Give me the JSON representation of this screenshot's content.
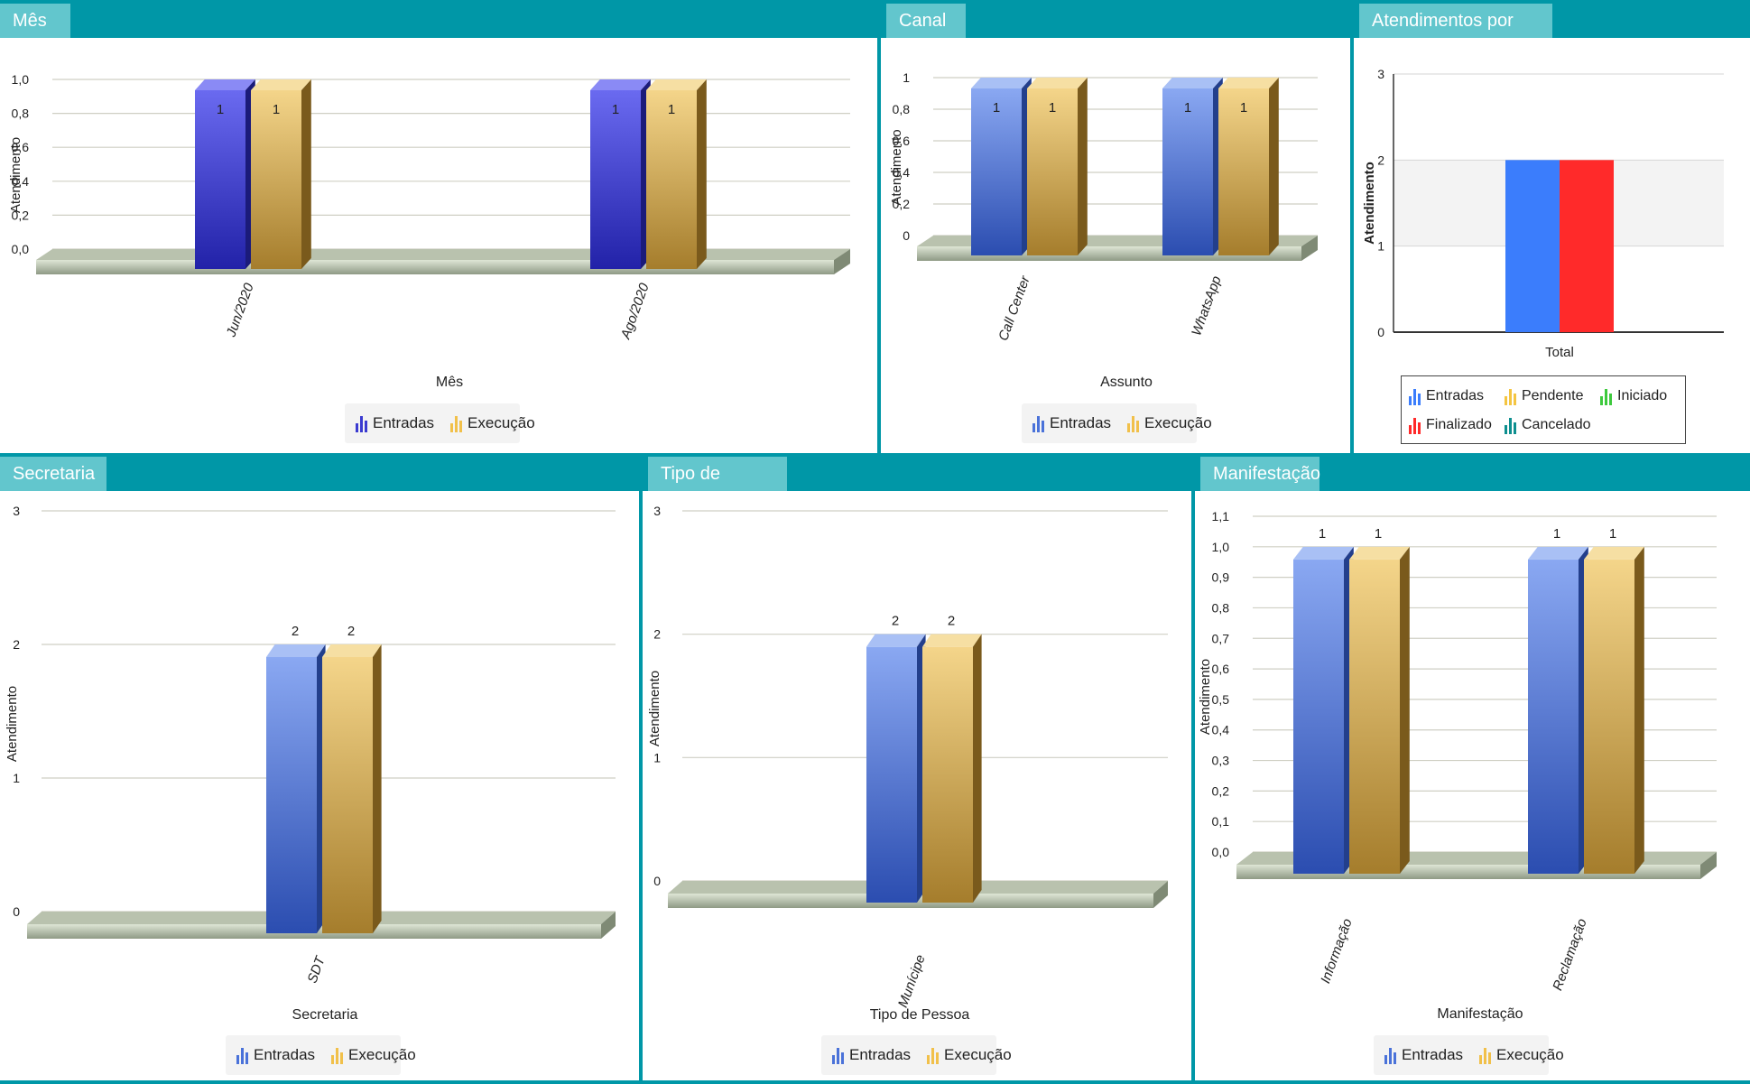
{
  "panels": [
    {
      "id": "mes",
      "tab": "Mês",
      "chart_data": {
        "type": "bar",
        "categories": [
          "Jun/2020",
          "Ago/2020"
        ],
        "series": [
          {
            "name": "Entradas",
            "values": [
              1,
              1
            ]
          },
          {
            "name": "Execução",
            "values": [
              1,
              1
            ]
          }
        ],
        "xlabel": "Mês",
        "ylabel": "Atendimento",
        "yticks": [
          "0,0",
          "0,2",
          "0,4",
          "0,6",
          "0,8",
          "1,0"
        ],
        "ylim": [
          0,
          1
        ],
        "data_labels": [
          "1",
          "1",
          "1",
          "1"
        ],
        "grid": true,
        "legend": "bottom-center"
      }
    },
    {
      "id": "canal",
      "tab": "Canal",
      "chart_data": {
        "type": "bar",
        "categories": [
          "Call Center",
          "WhatsApp"
        ],
        "series": [
          {
            "name": "Entradas",
            "values": [
              1,
              1
            ]
          },
          {
            "name": "Execução",
            "values": [
              1,
              1
            ]
          }
        ],
        "xlabel": "Assunto",
        "ylabel": "Atendimento",
        "yticks": [
          "0",
          "0,2",
          "0,4",
          "0,6",
          "0,8",
          "1"
        ],
        "ylim": [
          0,
          1
        ],
        "data_labels": [
          "1",
          "1",
          "1",
          "1"
        ],
        "grid": true,
        "legend": "bottom-center"
      }
    },
    {
      "id": "status",
      "tab": "Atendimentos por Status",
      "chart_data": {
        "type": "bar",
        "categories": [
          "Total"
        ],
        "series": [
          {
            "name": "Entradas",
            "values": [
              2
            ],
            "color": "#3b7dfc"
          },
          {
            "name": "Finalizado",
            "values": [
              2
            ],
            "color": "#ff2a2a"
          },
          {
            "name": "Pendente",
            "values": [
              0
            ],
            "color": "#f4c542"
          },
          {
            "name": "Cancelado",
            "values": [
              0
            ],
            "color": "#0e8f8f"
          },
          {
            "name": "Iniciado",
            "values": [
              0
            ],
            "color": "#3dc93d"
          }
        ],
        "ylabel": "Atendimento",
        "yticks": [
          "0",
          "1",
          "2",
          "3"
        ],
        "ylim": [
          0,
          3
        ],
        "grid": true,
        "legend": "bottom"
      }
    },
    {
      "id": "secretaria",
      "tab": "Secretaria",
      "chart_data": {
        "type": "bar",
        "categories": [
          "SDT"
        ],
        "series": [
          {
            "name": "Entradas",
            "values": [
              2
            ]
          },
          {
            "name": "Execução",
            "values": [
              2
            ]
          }
        ],
        "xlabel": "Secretaria",
        "ylabel": "Atendimento",
        "yticks": [
          "0",
          "1",
          "2",
          "3"
        ],
        "ylim": [
          0,
          3
        ],
        "data_labels": [
          "2",
          "2"
        ],
        "grid": true,
        "legend": "bottom-center"
      }
    },
    {
      "id": "tipo",
      "tab": "Tipo de Pessoa",
      "chart_data": {
        "type": "bar",
        "categories": [
          "Munícipe"
        ],
        "series": [
          {
            "name": "Entradas",
            "values": [
              2
            ]
          },
          {
            "name": "Execução",
            "values": [
              2
            ]
          }
        ],
        "xlabel": "Tipo de Pessoa",
        "ylabel": "Atendimento",
        "yticks": [
          "0",
          "1",
          "2",
          "3"
        ],
        "ylim": [
          0,
          3
        ],
        "data_labels": [
          "2",
          "2"
        ],
        "grid": true,
        "legend": "bottom-center"
      }
    },
    {
      "id": "manifestacao",
      "tab": "Manifestação",
      "chart_data": {
        "type": "bar",
        "categories": [
          "Informação",
          "Reclamação"
        ],
        "series": [
          {
            "name": "Entradas",
            "values": [
              1,
              1
            ]
          },
          {
            "name": "Execução",
            "values": [
              1,
              1
            ]
          }
        ],
        "xlabel": "Manifestação",
        "ylabel": "Atendimento",
        "yticks": [
          "0,0",
          "0,1",
          "0,2",
          "0,3",
          "0,4",
          "0,5",
          "0,6",
          "0,7",
          "0,8",
          "0,9",
          "1,0",
          "1,1"
        ],
        "ylim": [
          0,
          1.1
        ],
        "data_labels": [
          "1",
          "1",
          "1",
          "1"
        ],
        "grid": true,
        "legend": "bottom-center"
      }
    }
  ],
  "colors": {
    "header": "#0097a7",
    "tab": "#62c6cd",
    "entradas_blue": "#4a6fd8",
    "entradas_darkblue": "#2b2bb8",
    "execucao_gold": "#d9b35a",
    "status_entradas": "#3b7dfc",
    "status_finalizado": "#ff2a2a",
    "status_pendente": "#f4c542",
    "status_iniciado": "#3dc93d",
    "status_cancelado": "#0e8f8f"
  }
}
